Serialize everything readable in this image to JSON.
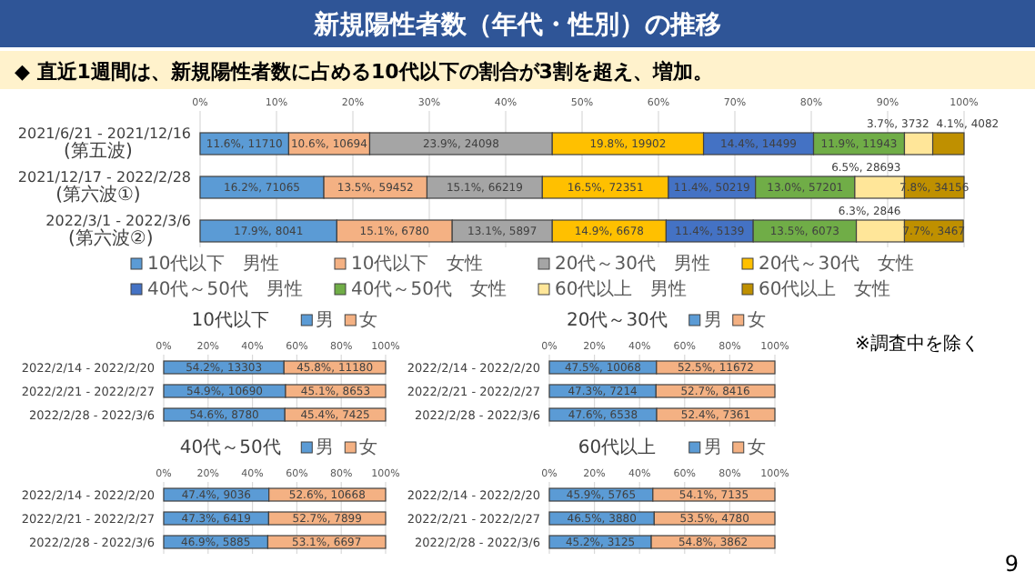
{
  "chart_data": [
    {
      "type": "bar",
      "orientation": "horizontal",
      "stacked": true,
      "title": "新規陽性者数（年代・性別）の推移",
      "subtitle": "◆ 直近1週間は、新規陽性者数に占める10代以下の割合が3割を超え、増加。",
      "categories": [
        "2021/6/21 - 2021/12/16\n(第五波)",
        "2021/12/17 - 2022/2/28\n(第六波①)",
        "2022/3/1 - 2022/3/6\n(第六波②)"
      ],
      "series": [
        {
          "name": "10代以下　男性",
          "color": "#5b9bd5",
          "values": [
            11.6,
            16.2,
            17.9
          ],
          "value_labels": [
            "11.6%, 11710",
            "16.2%, 71065",
            "17.9%, 8041"
          ]
        },
        {
          "name": "10代以下　女性",
          "color": "#f4b183",
          "values": [
            10.6,
            13.5,
            15.1
          ],
          "value_labels": [
            "10.6%, 10694",
            "13.5%, 59452",
            "15.1%, 6780"
          ]
        },
        {
          "name": "20代～30代　男性",
          "color": "#a5a5a5",
          "values": [
            23.9,
            15.1,
            13.1
          ],
          "value_labels": [
            "23.9%, 24098",
            "15.1%, 66219",
            "13.1%, 5897"
          ]
        },
        {
          "name": "20代～30代　女性",
          "color": "#ffc000",
          "values": [
            19.8,
            16.5,
            14.9
          ],
          "value_labels": [
            "19.8%, 19902",
            "16.5%, 72351",
            "14.9%, 6678"
          ]
        },
        {
          "name": "40代～50代　男性",
          "color": "#4472c4",
          "values": [
            14.4,
            11.4,
            11.4
          ],
          "value_labels": [
            "14.4%, 14499",
            "11.4%, 50219",
            "11.4%, 5139"
          ]
        },
        {
          "name": "40代～50代　女性",
          "color": "#70ad47",
          "values": [
            11.9,
            13.0,
            13.5
          ],
          "value_labels": [
            "11.9%, 11943",
            "13.0%, 57201",
            "13.5%, 6073"
          ]
        },
        {
          "name": "60代以上　男性",
          "color": "#ffe699",
          "values": [
            3.7,
            6.5,
            6.3
          ],
          "value_labels": [
            "3.7%, 3732",
            "6.5%, 28693",
            "6.3%, 2846"
          ]
        },
        {
          "name": "60代以上　女性",
          "color": "#bf9000",
          "values": [
            4.1,
            7.8,
            7.7
          ],
          "value_labels": [
            "4.1%, 4082",
            "7.8%, 34156",
            "7.7%, 3467"
          ]
        }
      ],
      "xlim": [
        0,
        100
      ],
      "xticks": [
        {
          "value": 0,
          "label": "0%"
        },
        {
          "value": 10,
          "label": "10%"
        },
        {
          "value": 20,
          "label": "20%"
        },
        {
          "value": 30,
          "label": "30%"
        },
        {
          "value": 40,
          "label": "40%"
        },
        {
          "value": 50,
          "label": "50%"
        },
        {
          "value": 60,
          "label": "60%"
        },
        {
          "value": 70,
          "label": "70%"
        },
        {
          "value": 80,
          "label": "80%"
        },
        {
          "value": 90,
          "label": "90%"
        },
        {
          "value": 100,
          "label": "100%"
        }
      ],
      "grid": "x",
      "legend": "bottom",
      "annotations": [
        "※調査中を除く",
        "9"
      ]
    },
    {
      "type": "bar",
      "orientation": "horizontal",
      "stacked": true,
      "title": "10代以下",
      "categories": [
        "2022/2/14 - 2022/2/20",
        "2022/2/21 - 2022/2/27",
        "2022/2/28 - 2022/3/6"
      ],
      "series": [
        {
          "name": "男",
          "color": "#5b9bd5",
          "values": [
            54.2,
            54.9,
            54.6
          ],
          "value_labels": [
            "54.2%, 13303",
            "54.9%, 10690",
            "54.6%, 8780"
          ]
        },
        {
          "name": "女",
          "color": "#f4b183",
          "values": [
            45.8,
            45.1,
            45.4
          ],
          "value_labels": [
            "45.8%, 11180",
            "45.1%, 8653",
            "45.4%, 7425"
          ]
        }
      ],
      "xlim": [
        0,
        100
      ],
      "xticks": [
        {
          "value": 0,
          "label": "0%"
        },
        {
          "value": 20,
          "label": "20%"
        },
        {
          "value": 40,
          "label": "40%"
        },
        {
          "value": 60,
          "label": "60%"
        },
        {
          "value": 80,
          "label": "80%"
        },
        {
          "value": 100,
          "label": "100%"
        }
      ],
      "grid": "x",
      "legend": "top"
    },
    {
      "type": "bar",
      "orientation": "horizontal",
      "stacked": true,
      "title": "20代～30代",
      "categories": [
        "2022/2/14 - 2022/2/20",
        "2022/2/21 - 2022/2/27",
        "2022/2/28 - 2022/3/6"
      ],
      "series": [
        {
          "name": "男",
          "color": "#5b9bd5",
          "values": [
            47.5,
            47.3,
            47.6
          ],
          "value_labels": [
            "47.5%, 10068",
            "47.3%, 7214",
            "47.6%, 6538"
          ]
        },
        {
          "name": "女",
          "color": "#f4b183",
          "values": [
            52.5,
            52.7,
            52.4
          ],
          "value_labels": [
            "52.5%, 11672",
            "52.7%, 8416",
            "52.4%, 7361"
          ]
        }
      ],
      "xlim": [
        0,
        100
      ],
      "xticks": [
        {
          "value": 0,
          "label": "0%"
        },
        {
          "value": 20,
          "label": "20%"
        },
        {
          "value": 40,
          "label": "40%"
        },
        {
          "value": 60,
          "label": "60%"
        },
        {
          "value": 80,
          "label": "80%"
        },
        {
          "value": 100,
          "label": "100%"
        }
      ],
      "grid": "x",
      "legend": "top"
    },
    {
      "type": "bar",
      "orientation": "horizontal",
      "stacked": true,
      "title": "40代～50代",
      "categories": [
        "2022/2/14 - 2022/2/20",
        "2022/2/21 - 2022/2/27",
        "2022/2/28 - 2022/3/6"
      ],
      "series": [
        {
          "name": "男",
          "color": "#5b9bd5",
          "values": [
            47.4,
            47.3,
            46.9
          ],
          "value_labels": [
            "47.4%, 9036",
            "47.3%, 6419",
            "46.9%, 5885"
          ]
        },
        {
          "name": "女",
          "color": "#f4b183",
          "values": [
            52.6,
            52.7,
            53.1
          ],
          "value_labels": [
            "52.6%, 10668",
            "52.7%, 7899",
            "53.1%, 6697"
          ]
        }
      ],
      "xlim": [
        0,
        100
      ],
      "xticks": [
        {
          "value": 0,
          "label": "0%"
        },
        {
          "value": 20,
          "label": "20%"
        },
        {
          "value": 40,
          "label": "40%"
        },
        {
          "value": 60,
          "label": "60%"
        },
        {
          "value": 80,
          "label": "80%"
        },
        {
          "value": 100,
          "label": "100%"
        }
      ],
      "grid": "x",
      "legend": "top"
    },
    {
      "type": "bar",
      "orientation": "horizontal",
      "stacked": true,
      "title": "60代以上",
      "categories": [
        "2022/2/14 - 2022/2/20",
        "2022/2/21 - 2022/2/27",
        "2022/2/28 - 2022/3/6"
      ],
      "series": [
        {
          "name": "男",
          "color": "#5b9bd5",
          "values": [
            45.9,
            46.5,
            45.2
          ],
          "value_labels": [
            "45.9%, 5765",
            "46.5%, 3880",
            "45.2%, 3125"
          ]
        },
        {
          "name": "女",
          "color": "#f4b183",
          "values": [
            54.1,
            53.5,
            54.8
          ],
          "value_labels": [
            "54.1%, 7135",
            "53.5%, 4780",
            "54.8%, 3862"
          ]
        }
      ],
      "xlim": [
        0,
        100
      ],
      "xticks": [
        {
          "value": 0,
          "label": "0%"
        },
        {
          "value": 20,
          "label": "20%"
        },
        {
          "value": 40,
          "label": "40%"
        },
        {
          "value": 60,
          "label": "60%"
        },
        {
          "value": 80,
          "label": "80%"
        },
        {
          "value": 100,
          "label": "100%"
        }
      ],
      "grid": "x",
      "legend": "top"
    }
  ]
}
